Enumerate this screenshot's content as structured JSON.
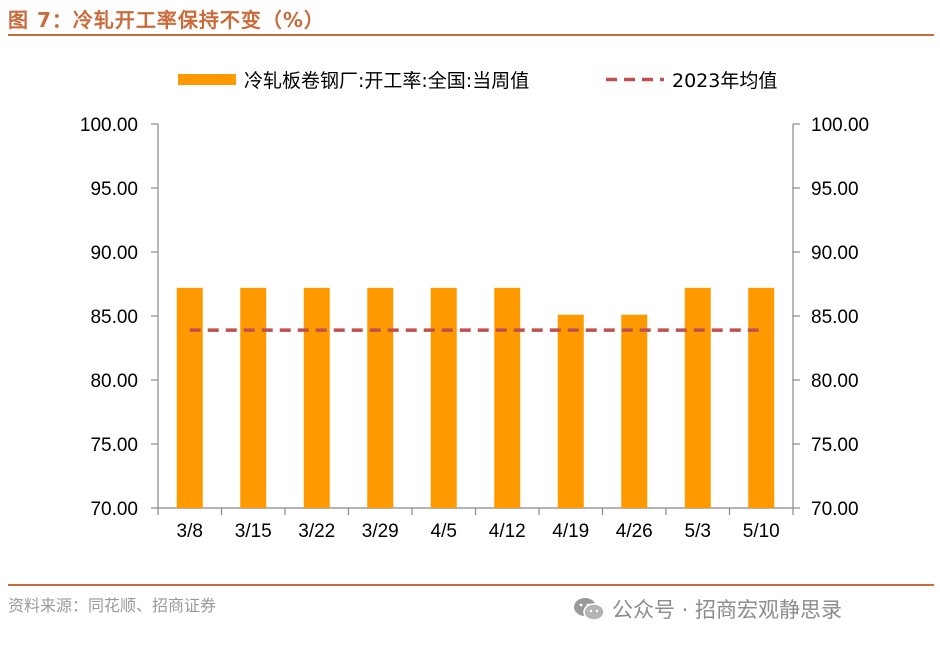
{
  "figure": {
    "title": "图 7：冷轧开工率保持不变（%）",
    "source": "资料来源：同花顺、招商证券",
    "watermark": "公众号 · 招商宏观静思录"
  },
  "colors": {
    "bar": "#ff9900",
    "avg_line": "#c0504d",
    "accent": "#c96b3c"
  },
  "chart_data": {
    "type": "bar",
    "categories": [
      "3/8",
      "3/15",
      "3/22",
      "3/29",
      "4/5",
      "4/12",
      "4/19",
      "4/26",
      "5/3",
      "5/10"
    ],
    "series": [
      {
        "name": "冷轧板卷钢厂:开工率:全国:当周值",
        "type": "bar",
        "values": [
          87.2,
          87.2,
          87.2,
          87.2,
          87.2,
          87.2,
          85.1,
          85.1,
          87.2,
          87.2
        ]
      },
      {
        "name": "2023年均值",
        "type": "line",
        "style": "dashed",
        "values": [
          83.9,
          83.9,
          83.9,
          83.9,
          83.9,
          83.9,
          83.9,
          83.9,
          83.9,
          83.9
        ]
      }
    ],
    "ylim": [
      70,
      100
    ],
    "yticks": [
      "70.00",
      "75.00",
      "80.00",
      "85.00",
      "90.00",
      "95.00",
      "100.00"
    ],
    "y2ticks": [
      "70.00",
      "75.00",
      "80.00",
      "85.00",
      "90.00",
      "95.00",
      "100.00"
    ],
    "legend_position": "top",
    "grid": false
  }
}
